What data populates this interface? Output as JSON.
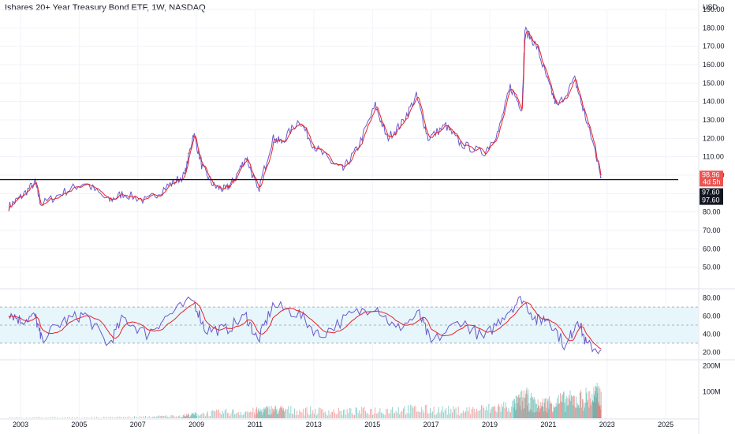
{
  "title": "Ishares 20+ Year Treasury Bond ETF, 1W, NASDAQ",
  "currency": "USD",
  "colors": {
    "up": "#26a69a",
    "down": "#ef5350",
    "price_line": "#6a5acd",
    "ma_line": "#e8222a",
    "rsi_line": "#6a5acd",
    "rsi_ma": "#e8222a",
    "hline": "#131722",
    "rsi_band": "#e7f6fb",
    "grid": "#f0f3fa"
  },
  "chart_data": [
    {
      "type": "line",
      "name": "price",
      "ylim": [
        40,
        190
      ],
      "xlim": [
        2002.3,
        2026.1
      ],
      "y_ticks": [
        "190.00",
        "180.00",
        "170.00",
        "160.00",
        "150.00",
        "140.00",
        "130.00",
        "120.00",
        "110.00",
        "100.00",
        "90.00",
        "80.00",
        "70.00",
        "60.00",
        "50.00"
      ],
      "y_tick_values": [
        190,
        180,
        170,
        160,
        150,
        140,
        130,
        120,
        110,
        100,
        90,
        80,
        70,
        60,
        50
      ],
      "x_ticks": [
        "2003",
        "2005",
        "2007",
        "2009",
        "2011",
        "2013",
        "2015",
        "2017",
        "2019",
        "2021",
        "2023",
        "2025"
      ],
      "x_tick_values": [
        2003,
        2005,
        2007,
        2009,
        2011,
        2013,
        2015,
        2017,
        2019,
        2021,
        2023,
        2025
      ],
      "horizontal_line": 97.6,
      "x": [
        2002.6,
        2003.0,
        2003.5,
        2003.7,
        2004.5,
        2005.2,
        2006.0,
        2006.5,
        2007.3,
        2008.0,
        2008.6,
        2008.9,
        2009.2,
        2009.6,
        2010.0,
        2010.3,
        2010.7,
        2011.1,
        2011.6,
        2011.9,
        2012.5,
        2013.0,
        2013.6,
        2014.0,
        2014.5,
        2015.1,
        2015.5,
        2016.0,
        2016.5,
        2016.9,
        2017.5,
        2018.0,
        2018.8,
        2019.3,
        2019.7,
        2020.1,
        2020.2,
        2020.6,
        2021.0,
        2021.3,
        2021.9,
        2022.2,
        2022.6,
        2022.8
      ],
      "values": [
        83,
        88,
        96,
        84,
        91,
        96,
        86,
        90,
        86,
        94,
        100,
        123,
        104,
        94,
        92,
        98,
        110,
        91,
        120,
        118,
        130,
        116,
        107,
        103,
        115,
        138,
        120,
        128,
        143,
        120,
        127,
        117,
        112,
        124,
        148,
        136,
        179,
        170,
        150,
        137,
        152,
        135,
        113,
        99
      ],
      "last_value_label": "98.96",
      "countdown_label": "4d 5h",
      "hline_labels": [
        "97.60",
        "97.60"
      ]
    },
    {
      "type": "line",
      "name": "rsi",
      "ylim": [
        15,
        85
      ],
      "y_ticks": [
        "80.00",
        "60.00",
        "40.00",
        "20.00"
      ],
      "y_tick_values": [
        80,
        60,
        40,
        20
      ],
      "band": [
        30,
        70
      ],
      "mid": 50,
      "x": [
        2002.6,
        2003.0,
        2003.5,
        2003.7,
        2004.5,
        2005.2,
        2006.0,
        2006.5,
        2007.3,
        2008.0,
        2008.9,
        2009.3,
        2010.0,
        2010.7,
        2011.1,
        2011.6,
        2012.5,
        2013.2,
        2014.2,
        2015.1,
        2015.8,
        2016.6,
        2017.0,
        2018.0,
        2018.8,
        2019.5,
        2020.1,
        2020.6,
        2021.0,
        2021.6,
        2022.0,
        2022.3,
        2022.8
      ],
      "values": [
        65,
        55,
        60,
        35,
        55,
        62,
        28,
        58,
        40,
        60,
        78,
        45,
        45,
        60,
        32,
        72,
        62,
        38,
        60,
        72,
        45,
        62,
        30,
        55,
        35,
        62,
        80,
        55,
        58,
        25,
        58,
        28,
        22
      ]
    },
    {
      "type": "bar",
      "name": "volume",
      "ylim": [
        0,
        210
      ],
      "y_ticks": [
        "200M",
        "100M"
      ],
      "y_tick_values": [
        200,
        100
      ],
      "x": [
        2002.6,
        2004.0,
        2006.0,
        2007.5,
        2008.5,
        2009.0,
        2010.0,
        2011.0,
        2011.5,
        2012.0,
        2013.0,
        2014.0,
        2015.0,
        2016.0,
        2017.0,
        2018.0,
        2019.0,
        2019.8,
        2020.2,
        2020.6,
        2021.0,
        2021.5,
        2022.0,
        2022.5,
        2022.8
      ],
      "values": [
        2,
        4,
        5,
        8,
        12,
        20,
        28,
        32,
        40,
        38,
        34,
        30,
        36,
        42,
        40,
        35,
        45,
        60,
        95,
        55,
        70,
        80,
        85,
        100,
        110
      ]
    }
  ]
}
